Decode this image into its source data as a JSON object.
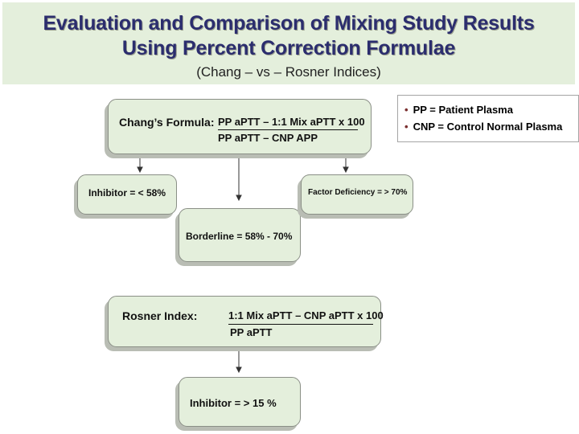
{
  "header": {
    "title_line1": "Evaluation and Comparison of Mixing Study Results",
    "title_line2": "Using Percent Correction Formulae",
    "subtitle": "(Chang – vs – Rosner Indices)"
  },
  "chang": {
    "label": "Chang’s Formula:",
    "numerator": "PP aPTT – 1:1 Mix aPTT x 100",
    "denominator": "PP aPTT – CNP APP"
  },
  "legend": {
    "items": [
      "PP = Patient Plasma",
      "CNP = Control Normal Plasma"
    ]
  },
  "results": {
    "inhibitor": "Inhibitor = < 58%",
    "borderline": "Borderline = 58% - 70%",
    "factor_deficiency": "Factor Deficiency = > 70%"
  },
  "rosner": {
    "label": "Rosner Index:",
    "numerator": "1:1 Mix aPTT – CNP aPTT x 100",
    "denominator": "PP aPTT",
    "result": "Inhibitor = > 15 %"
  }
}
